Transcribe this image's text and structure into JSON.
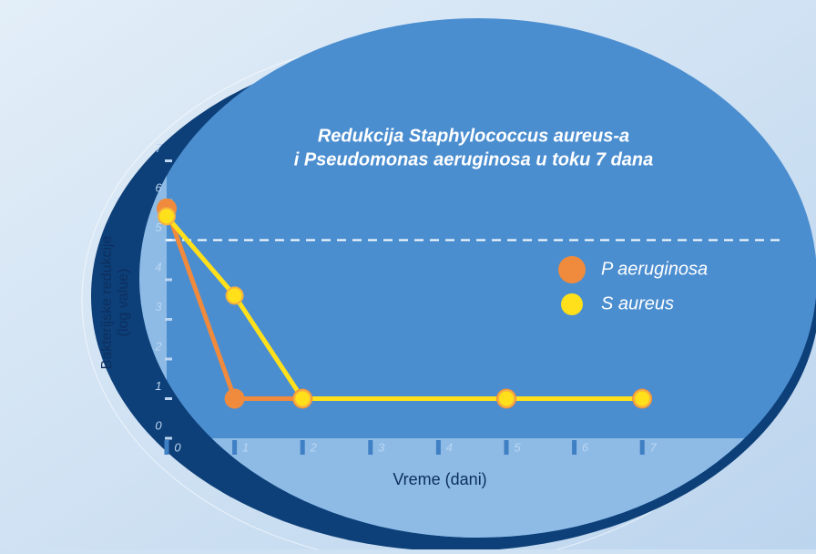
{
  "chart_data": {
    "type": "line",
    "title": [
      "Redukcija Staphylococcus aureus-a",
      "i Pseudomonas aeruginosa u toku 7 dana"
    ],
    "x_label": "Vreme (dani)",
    "y_label": [
      "Bakterijske redukcije",
      "(log value)"
    ],
    "x": [
      0,
      1,
      2,
      5,
      7
    ],
    "series": [
      {
        "name": "P aeruginosa",
        "color": "#f08a3c",
        "values": [
          5.8,
          1,
          1,
          1,
          1
        ]
      },
      {
        "name": "S aureus",
        "color": "#ffe01a",
        "values": [
          5.6,
          3.6,
          1,
          1,
          1
        ]
      }
    ],
    "xlim": [
      0,
      8
    ],
    "ylim": [
      0,
      8
    ],
    "xticks": [
      0,
      1,
      2,
      3,
      4,
      5,
      6,
      7
    ],
    "yticks": [
      0,
      1,
      2,
      3,
      4,
      5,
      6,
      7
    ],
    "reference_line": 5,
    "legend": "right"
  }
}
